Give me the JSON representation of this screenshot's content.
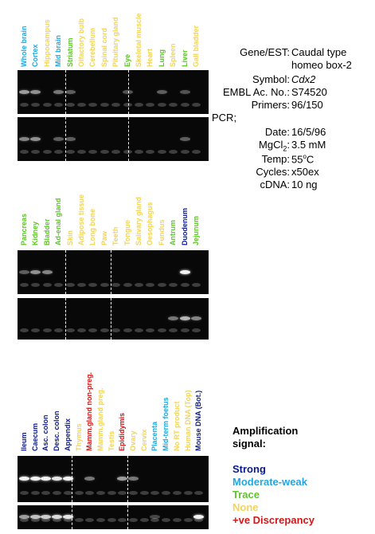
{
  "colors": {
    "strong": "#0b1a8c",
    "moderate": "#22a7e0",
    "trace": "#5ec52a",
    "none": "#f2d45a",
    "discrepancy": "#d01818"
  },
  "panels": [
    {
      "lanes": [
        {
          "label": "Whole brain",
          "level": "moderate"
        },
        {
          "label": "Cortex",
          "level": "moderate"
        },
        {
          "label": "Hippocampus",
          "level": "none"
        },
        {
          "label": "Mid brain",
          "level": "moderate"
        },
        {
          "label": "Striatum",
          "level": "trace"
        },
        {
          "label": "Olfactory bulb",
          "level": "none"
        },
        {
          "label": "Cerebellum",
          "level": "none"
        },
        {
          "label": "Spinal cord",
          "level": "none"
        },
        {
          "label": "Pituitary gland",
          "level": "none"
        },
        {
          "label": "Eye",
          "level": "trace"
        },
        {
          "label": "Skeletal muscle",
          "level": "none"
        },
        {
          "label": "Heart",
          "level": "none"
        },
        {
          "label": "Lung",
          "level": "trace"
        },
        {
          "label": "Spleen",
          "level": "none"
        },
        {
          "label": "Liver",
          "level": "trace"
        },
        {
          "label": "Gall bladder",
          "level": "none"
        }
      ]
    },
    {
      "lanes": [
        {
          "label": "Pancreas",
          "level": "trace"
        },
        {
          "label": "Kidney",
          "level": "trace"
        },
        {
          "label": "Bladder",
          "level": "trace"
        },
        {
          "label": "Ad-enal gland",
          "level": "trace"
        },
        {
          "label": "Skin",
          "level": "none"
        },
        {
          "label": "Adipose tissue",
          "level": "none"
        },
        {
          "label": "Long bone",
          "level": "none"
        },
        {
          "label": "Paw",
          "level": "none"
        },
        {
          "label": "Teeth",
          "level": "none"
        },
        {
          "label": "Tongue",
          "level": "none"
        },
        {
          "label": "Salivary gland",
          "level": "none"
        },
        {
          "label": "Oesophagus",
          "level": "none"
        },
        {
          "label": "Fundus",
          "level": "none"
        },
        {
          "label": "Antrum",
          "level": "trace"
        },
        {
          "label": "Duodenum",
          "level": "strong"
        },
        {
          "label": "Jejunum",
          "level": "trace"
        }
      ]
    },
    {
      "lanes": [
        {
          "label": "Ileum",
          "level": "strong"
        },
        {
          "label": "Caecum",
          "level": "strong"
        },
        {
          "label": "Asc. colon",
          "level": "strong"
        },
        {
          "label": "Desc. colon",
          "level": "strong"
        },
        {
          "label": "Appendix",
          "level": "strong"
        },
        {
          "label": "Thymus",
          "level": "none"
        },
        {
          "label": "Mamm.gland non-preg.",
          "level": "discrepancy"
        },
        {
          "label": "Mamm.gland preg.",
          "level": "none"
        },
        {
          "label": "Testis",
          "level": "none"
        },
        {
          "label": "Epididymis",
          "level": "discrepancy"
        },
        {
          "label": "Ovary",
          "level": "none"
        },
        {
          "label": "Cervix",
          "level": "none"
        },
        {
          "label": "Placenta",
          "level": "moderate"
        },
        {
          "label": "Mid-term foetus",
          "level": "moderate"
        },
        {
          "label": "No RT product",
          "level": "none"
        },
        {
          "label": "Human DNA (Top)",
          "level": "none"
        },
        {
          "label": "Mouse DNA (Bot.)",
          "level": "strong"
        }
      ]
    }
  ],
  "info": {
    "gene_key": "Gene/EST:",
    "gene_val_1": "Caudal type",
    "gene_val_2": "homeo box-2",
    "symbol_key": "Symbol:",
    "symbol_val": "Cdx2",
    "embl_key": "EMBL Ac. No.:",
    "embl_val": "S74520",
    "primers_key": "Primers:",
    "primers_val": "96/150",
    "pcr_key": "PCR;",
    "date_key": "Date:",
    "date_val": "16/5/96",
    "mgcl_key": "MgCl",
    "mgcl_sub": "2",
    "mgcl_colon": ":",
    "mgcl_val": "3.5 mM",
    "temp_key": "Temp:",
    "temp_val_num": "55",
    "temp_val_sup": "o",
    "temp_val_unit": "C",
    "cycles_key": "Cycles:",
    "cycles_val": "x50ex",
    "cdna_key": "cDNA:",
    "cdna_val": "10 ng"
  },
  "legend": {
    "title_1": "Amplification",
    "title_2": "signal:",
    "strong": "Strong",
    "moderate": "Moderate-weak",
    "trace": "Trace",
    "none": "None",
    "discrepancy": "+ve Discrepancy"
  }
}
